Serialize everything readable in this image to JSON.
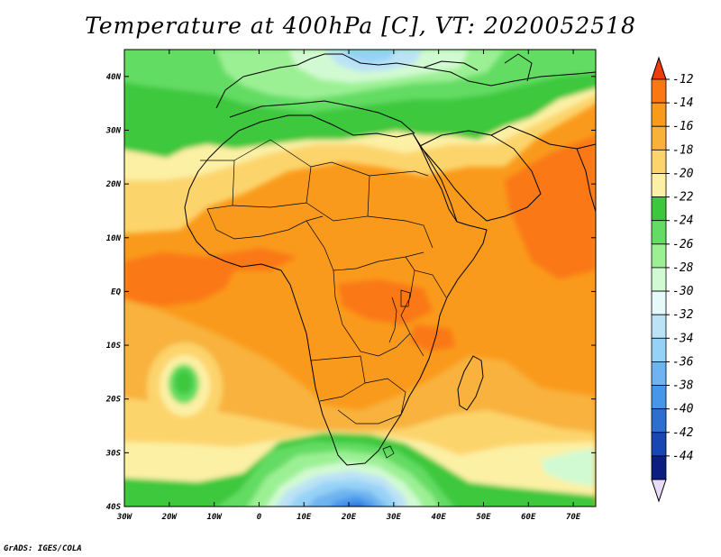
{
  "title": "Temperature at 400hPa [C], VT: 2020052518",
  "credit": "GrADS: IGES/COLA",
  "map": {
    "lon_range": [
      -30,
      75
    ],
    "lat_range": [
      -40,
      45
    ],
    "lon_ticks": [
      {
        "value": -30,
        "label": "30W"
      },
      {
        "value": -20,
        "label": "20W"
      },
      {
        "value": -10,
        "label": "10W"
      },
      {
        "value": 0,
        "label": "0"
      },
      {
        "value": 10,
        "label": "10E"
      },
      {
        "value": 20,
        "label": "20E"
      },
      {
        "value": 30,
        "label": "30E"
      },
      {
        "value": 40,
        "label": "40E"
      },
      {
        "value": 50,
        "label": "50E"
      },
      {
        "value": 60,
        "label": "60E"
      },
      {
        "value": 70,
        "label": "70E"
      }
    ],
    "lat_ticks": [
      {
        "value": 40,
        "label": "40N"
      },
      {
        "value": 30,
        "label": "30N"
      },
      {
        "value": 20,
        "label": "20N"
      },
      {
        "value": 10,
        "label": "10N"
      },
      {
        "value": 0,
        "label": "EQ"
      },
      {
        "value": -10,
        "label": "10S"
      },
      {
        "value": -20,
        "label": "20S"
      },
      {
        "value": -30,
        "label": "30S"
      },
      {
        "value": -40,
        "label": "40S"
      }
    ]
  },
  "colorbar": {
    "labels": [
      "-12",
      "-14",
      "-16",
      "-18",
      "-20",
      "-22",
      "-24",
      "-26",
      "-28",
      "-30",
      "-32",
      "-34",
      "-36",
      "-38",
      "-40",
      "-42",
      "-44"
    ],
    "colors": [
      "#f03c0a",
      "#fa7814",
      "#fa9a1c",
      "#f8b23c",
      "#fcd46c",
      "#fcf0a4",
      "#3cc83c",
      "#64dc64",
      "#9cf094",
      "#d2fad2",
      "#e6fafa",
      "#bce2f6",
      "#96d2f6",
      "#6eb4f0",
      "#4696ec",
      "#2c6ed2",
      "#1846b4",
      "#0c1e82",
      "#e6dcfa"
    ]
  }
}
